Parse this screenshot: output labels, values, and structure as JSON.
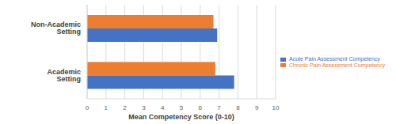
{
  "chart_data": {
    "type": "bar",
    "orientation": "horizontal",
    "categories": [
      "Non-Academic Setting",
      "Academic Setting"
    ],
    "series": [
      {
        "name": "Chronic Pain Assessment Competency",
        "color": "#ed7d31",
        "values": [
          6.7,
          6.8
        ]
      },
      {
        "name": "Acute Pain Assessment Competency",
        "color": "#4472c4",
        "values": [
          6.9,
          7.8
        ]
      }
    ],
    "x_label": "Mean Competency Score (0-10)",
    "xlim": [
      0,
      10
    ],
    "xticks": [
      0,
      1,
      2,
      3,
      4,
      5,
      6,
      7,
      8,
      9,
      10
    ],
    "grid": true,
    "legend": "right"
  }
}
